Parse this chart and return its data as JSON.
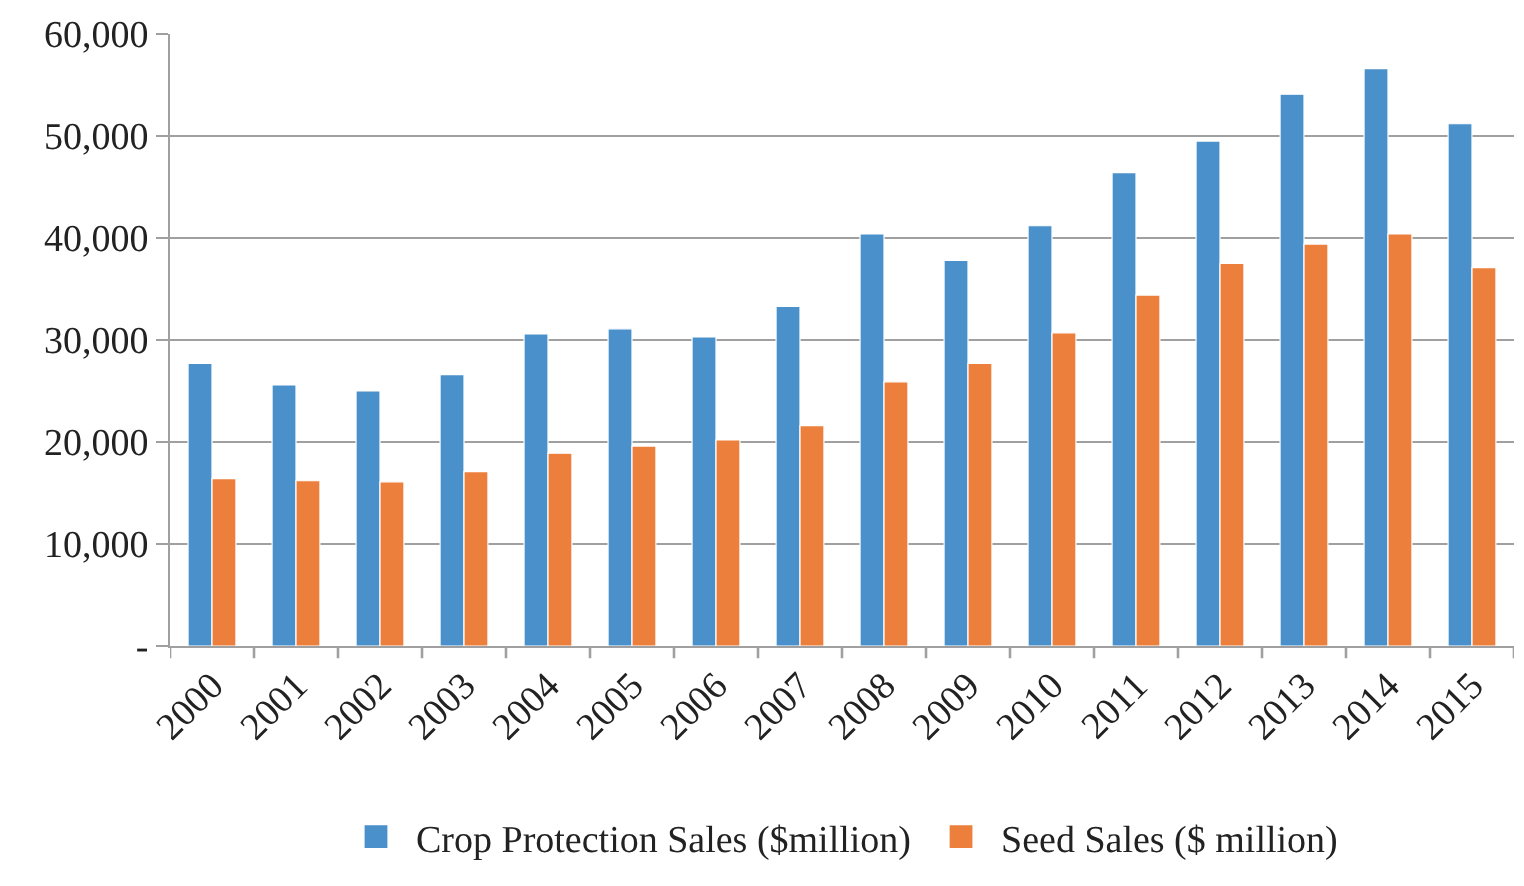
{
  "chart_data": {
    "type": "bar",
    "categories": [
      "2000",
      "2001",
      "2002",
      "2003",
      "2004",
      "2005",
      "2006",
      "2007",
      "2008",
      "2009",
      "2010",
      "2011",
      "2012",
      "2013",
      "2014",
      "2015"
    ],
    "series": [
      {
        "name": "Crop Protection Sales ($million)",
        "color": "#4a90cb",
        "values": [
          27700,
          25600,
          25000,
          26600,
          30600,
          31100,
          30300,
          33300,
          40400,
          37800,
          41200,
          46400,
          49500,
          54100,
          56600,
          51200
        ]
      },
      {
        "name": "Seed Sales ($ million)",
        "color": "#ec7f3c",
        "values": [
          16400,
          16200,
          16100,
          17100,
          18900,
          19600,
          20200,
          21600,
          25900,
          27700,
          30700,
          34400,
          37500,
          39400,
          40400,
          37100
        ]
      }
    ],
    "ylim": [
      0,
      60000
    ],
    "yticks": [
      {
        "value": 0,
        "label": "-"
      },
      {
        "value": 10000,
        "label": "10,000"
      },
      {
        "value": 20000,
        "label": "20,000"
      },
      {
        "value": 30000,
        "label": "30,000"
      },
      {
        "value": 40000,
        "label": "40,000"
      },
      {
        "value": 50000,
        "label": "50,000"
      },
      {
        "value": 60000,
        "label": "60,000"
      }
    ],
    "grid": "y",
    "legend": "bottom"
  }
}
